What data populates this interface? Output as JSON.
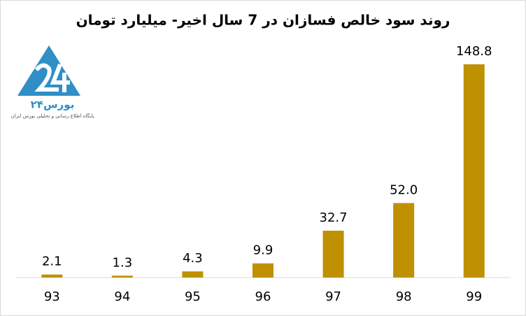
{
  "chart_data": {
    "type": "bar",
    "title": "روند سود خالص فسازان در 7 سال اخیر- میلیارد تومان",
    "categories": [
      "93",
      "94",
      "95",
      "96",
      "97",
      "98",
      "99"
    ],
    "values": [
      2.1,
      1.3,
      4.3,
      9.9,
      32.7,
      52.0,
      148.8
    ],
    "value_labels": [
      "2.1",
      "1.3",
      "4.3",
      "9.9",
      "32.7",
      "52.0",
      "148.8"
    ],
    "color": "#bf9000"
  },
  "logo": {
    "name": "بورس۲۴",
    "tagline": "پایگاه اطلاع رسانی و تحلیلی بورس ایران"
  }
}
